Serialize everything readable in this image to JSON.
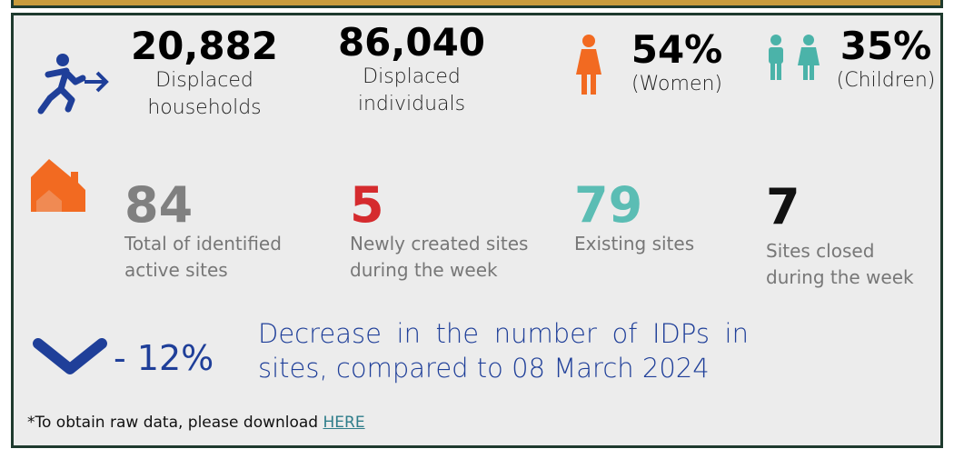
{
  "people": [
    {
      "value": "20,882",
      "label": [
        "Displaced",
        "households"
      ]
    },
    {
      "value": "86,040",
      "label": [
        "Displaced",
        "individuals"
      ]
    },
    {
      "value": "54%",
      "label": [
        "(Women)"
      ]
    },
    {
      "value": "35%",
      "label": [
        "(Children)"
      ]
    }
  ],
  "sites": [
    {
      "value": "84",
      "label": [
        "Total of identified",
        "active sites"
      ]
    },
    {
      "value": "5",
      "label": [
        "Newly created sites",
        "during the week"
      ]
    },
    {
      "value": "79",
      "label": [
        "Existing sites"
      ]
    },
    {
      "value": "7",
      "label": [
        "Sites closed",
        "during the week"
      ]
    }
  ],
  "change": {
    "value": "- 12%",
    "text": [
      "Decrease in the number of IDPs in",
      "sites, compared to 08 March 2024"
    ]
  },
  "footer": {
    "text": "*To obtain raw data, please download",
    "link": "HERE"
  }
}
